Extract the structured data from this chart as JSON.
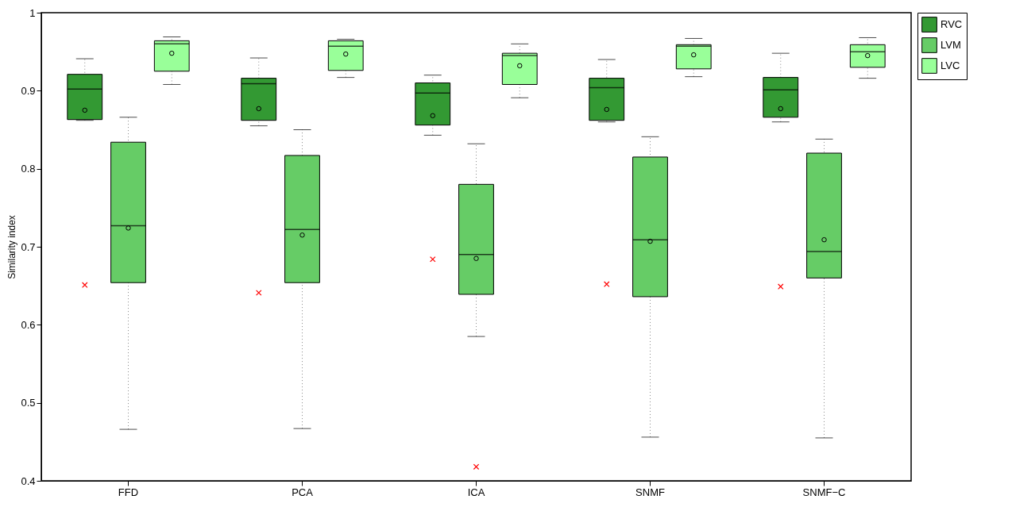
{
  "chart_data": {
    "type": "box",
    "categories": [
      "FFD",
      "PCA",
      "ICA",
      "SNMF",
      "SNMF−C"
    ],
    "ylabel": "Similarity index",
    "ylim": [
      0.4,
      1
    ],
    "yticks": [
      0.4,
      0.5,
      0.6,
      0.7,
      0.8,
      0.9,
      1
    ],
    "legend": "top right",
    "series": [
      {
        "name": "RVC",
        "color": "#339933",
        "boxes": [
          {
            "low": 0.862,
            "q1": 0.863,
            "median": 0.902,
            "q3": 0.921,
            "high": 0.941,
            "mean": 0.875,
            "outliers": [
              0.651
            ]
          },
          {
            "low": 0.855,
            "q1": 0.862,
            "median": 0.909,
            "q3": 0.916,
            "high": 0.942,
            "mean": 0.877,
            "outliers": [
              0.641
            ]
          },
          {
            "low": 0.843,
            "q1": 0.856,
            "median": 0.897,
            "q3": 0.91,
            "high": 0.92,
            "mean": 0.868,
            "outliers": [
              0.684
            ]
          },
          {
            "low": 0.86,
            "q1": 0.862,
            "median": 0.904,
            "q3": 0.916,
            "high": 0.94,
            "mean": 0.876,
            "outliers": [
              0.652
            ]
          },
          {
            "low": 0.86,
            "q1": 0.866,
            "median": 0.901,
            "q3": 0.917,
            "high": 0.948,
            "mean": 0.877,
            "outliers": [
              0.649
            ]
          }
        ]
      },
      {
        "name": "LVM",
        "color": "#66cc66",
        "boxes": [
          {
            "low": 0.466,
            "q1": 0.654,
            "median": 0.727,
            "q3": 0.834,
            "high": 0.866,
            "mean": 0.724
          },
          {
            "low": 0.467,
            "q1": 0.654,
            "median": 0.722,
            "q3": 0.817,
            "high": 0.85,
            "mean": 0.715
          },
          {
            "low": 0.585,
            "q1": 0.639,
            "median": 0.69,
            "q3": 0.78,
            "high": 0.832,
            "mean": 0.685,
            "outliers": [
              0.418
            ]
          },
          {
            "low": 0.456,
            "q1": 0.636,
            "median": 0.709,
            "q3": 0.815,
            "high": 0.841,
            "mean": 0.707
          },
          {
            "low": 0.455,
            "q1": 0.66,
            "median": 0.694,
            "q3": 0.82,
            "high": 0.838,
            "mean": 0.709
          }
        ]
      },
      {
        "name": "LVC",
        "color": "#99ff99",
        "boxes": [
          {
            "low": 0.908,
            "q1": 0.925,
            "median": 0.96,
            "q3": 0.964,
            "high": 0.969,
            "mean": 0.948
          },
          {
            "low": 0.917,
            "q1": 0.926,
            "median": 0.957,
            "q3": 0.964,
            "high": 0.966,
            "mean": 0.947
          },
          {
            "low": 0.891,
            "q1": 0.908,
            "median": 0.945,
            "q3": 0.948,
            "high": 0.96,
            "mean": 0.932
          },
          {
            "low": 0.918,
            "q1": 0.928,
            "median": 0.957,
            "q3": 0.959,
            "high": 0.967,
            "mean": 0.946
          },
          {
            "low": 0.916,
            "q1": 0.93,
            "median": 0.95,
            "q3": 0.959,
            "high": 0.968,
            "mean": 0.945
          }
        ]
      }
    ]
  }
}
